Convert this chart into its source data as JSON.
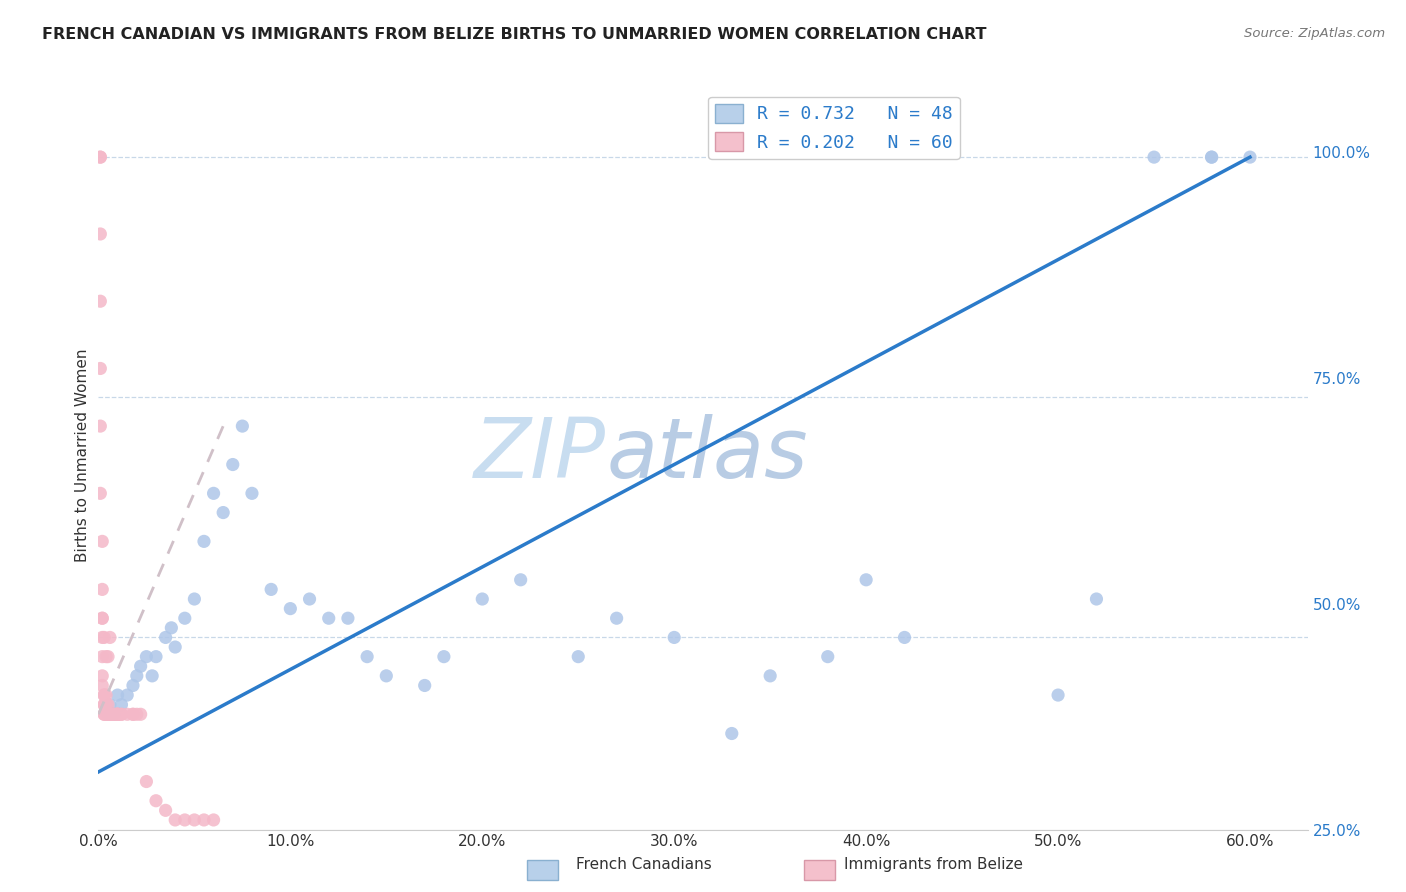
{
  "title": "FRENCH CANADIAN VS IMMIGRANTS FROM BELIZE BIRTHS TO UNMARRIED WOMEN CORRELATION CHART",
  "source": "Source: ZipAtlas.com",
  "ylabel": "Births to Unmarried Women",
  "x_ticks": [
    0.0,
    0.1,
    0.2,
    0.3,
    0.4,
    0.5,
    0.6
  ],
  "x_tick_labels": [
    "0.0%",
    "10.0%",
    "20.0%",
    "30.0%",
    "40.0%",
    "50.0%",
    "60.0%"
  ],
  "y_ticks_right": [
    0.25,
    0.5,
    0.75,
    1.0
  ],
  "y_tick_labels_right": [
    "25.0%",
    "50.0%",
    "75.0%",
    "100.0%"
  ],
  "x_lim": [
    0.0,
    0.63
  ],
  "y_lim": [
    0.3,
    1.08
  ],
  "blue_R": 0.732,
  "blue_N": 48,
  "pink_R": 0.202,
  "pink_N": 60,
  "blue_dot_color": "#aec6e8",
  "pink_dot_color": "#f4b8c8",
  "blue_line_color": "#2b7bca",
  "pink_line_color": "#e08090",
  "pink_dash_color": "#d0c0c8",
  "legend_blue_face": "#b8d0ea",
  "legend_pink_face": "#f4c0cc",
  "watermark": "ZIPatlas",
  "watermark_color": "#d8eaf8",
  "blue_line_x0": 0.0,
  "blue_line_y0": 0.36,
  "blue_line_x1": 0.6,
  "blue_line_y1": 1.0,
  "pink_line_x0": 0.0,
  "pink_line_y0": 0.42,
  "pink_line_x1": 0.065,
  "pink_line_y1": 0.72,
  "blue_x": [
    0.005,
    0.006,
    0.008,
    0.01,
    0.012,
    0.015,
    0.018,
    0.02,
    0.022,
    0.025,
    0.028,
    0.03,
    0.035,
    0.038,
    0.04,
    0.045,
    0.05,
    0.055,
    0.06,
    0.065,
    0.07,
    0.075,
    0.08,
    0.09,
    0.1,
    0.11,
    0.12,
    0.13,
    0.14,
    0.15,
    0.17,
    0.18,
    0.2,
    0.22,
    0.25,
    0.27,
    0.3,
    0.33,
    0.35,
    0.38,
    0.4,
    0.42,
    0.5,
    0.52,
    0.55,
    0.58,
    0.58,
    0.6
  ],
  "blue_y": [
    0.42,
    0.43,
    0.42,
    0.44,
    0.43,
    0.44,
    0.45,
    0.46,
    0.47,
    0.48,
    0.46,
    0.48,
    0.5,
    0.51,
    0.49,
    0.52,
    0.54,
    0.6,
    0.65,
    0.63,
    0.68,
    0.72,
    0.65,
    0.55,
    0.53,
    0.54,
    0.52,
    0.52,
    0.48,
    0.46,
    0.45,
    0.48,
    0.54,
    0.56,
    0.48,
    0.52,
    0.5,
    0.4,
    0.46,
    0.48,
    0.56,
    0.5,
    0.44,
    0.54,
    1.0,
    1.0,
    1.0,
    1.0
  ],
  "pink_x": [
    0.001,
    0.001,
    0.001,
    0.001,
    0.001,
    0.001,
    0.001,
    0.002,
    0.002,
    0.002,
    0.002,
    0.002,
    0.002,
    0.002,
    0.003,
    0.003,
    0.003,
    0.003,
    0.003,
    0.003,
    0.004,
    0.004,
    0.004,
    0.004,
    0.005,
    0.005,
    0.005,
    0.006,
    0.006,
    0.006,
    0.007,
    0.007,
    0.008,
    0.008,
    0.009,
    0.01,
    0.01,
    0.01,
    0.01,
    0.01,
    0.012,
    0.012,
    0.015,
    0.018,
    0.018,
    0.02,
    0.022,
    0.025,
    0.03,
    0.035,
    0.04,
    0.045,
    0.05,
    0.055,
    0.06,
    0.002,
    0.003,
    0.004,
    0.005,
    0.006
  ],
  "pink_y": [
    1.0,
    1.0,
    0.92,
    0.85,
    0.78,
    0.72,
    0.65,
    0.6,
    0.55,
    0.52,
    0.5,
    0.48,
    0.46,
    0.45,
    0.44,
    0.44,
    0.43,
    0.43,
    0.42,
    0.42,
    0.44,
    0.43,
    0.42,
    0.42,
    0.43,
    0.42,
    0.42,
    0.42,
    0.42,
    0.42,
    0.42,
    0.42,
    0.42,
    0.42,
    0.42,
    0.42,
    0.42,
    0.42,
    0.42,
    0.42,
    0.42,
    0.42,
    0.42,
    0.42,
    0.42,
    0.42,
    0.42,
    0.35,
    0.33,
    0.32,
    0.31,
    0.31,
    0.31,
    0.31,
    0.31,
    0.52,
    0.5,
    0.48,
    0.48,
    0.5
  ]
}
